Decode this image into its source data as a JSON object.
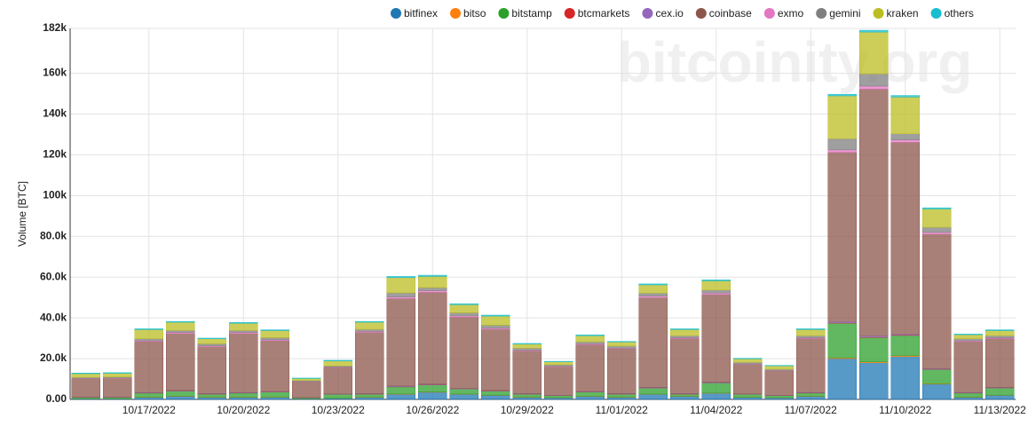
{
  "chart_data": {
    "type": "stacked_bar",
    "watermark": "bitcoinity.org",
    "y_label": "Volume [BTC]",
    "categories": [
      null,
      null,
      "10/17/2022",
      null,
      null,
      "10/20/2022",
      null,
      null,
      "10/23/2022",
      null,
      null,
      "10/26/2022",
      null,
      null,
      "10/29/2022",
      null,
      null,
      "11/01/2022",
      null,
      null,
      "11/04/2022",
      null,
      null,
      "11/07/2022",
      null,
      null,
      "11/10/2022",
      null,
      null,
      "11/13/2022"
    ],
    "ylim": [
      0,
      182000
    ],
    "yticks": [
      {
        "value": 0,
        "label": "0.00"
      },
      {
        "value": 20000,
        "label": "20.0k"
      },
      {
        "value": 40000,
        "label": "40.0k"
      },
      {
        "value": 60000,
        "label": "60.0k"
      },
      {
        "value": 80000,
        "label": "80.0k"
      },
      {
        "value": 100000,
        "label": "100k"
      },
      {
        "value": 120000,
        "label": "120k"
      },
      {
        "value": 140000,
        "label": "140k"
      },
      {
        "value": 160000,
        "label": "160k"
      },
      {
        "value": 182000,
        "label": "182k"
      }
    ],
    "grid": true,
    "legend_position": "top",
    "series": [
      {
        "name": "bitfinex",
        "color": "#1f77b4",
        "values": [
          300,
          300,
          1000,
          1500,
          1000,
          1000,
          1000,
          300,
          500,
          1000,
          2500,
          3500,
          2500,
          2000,
          1000,
          800,
          1500,
          1000,
          2500,
          1500,
          3000,
          1000,
          800,
          1500,
          20000,
          18000,
          21000,
          7500,
          1000,
          2000
        ]
      },
      {
        "name": "bitso",
        "color": "#ff7f0e",
        "values": [
          50,
          50,
          100,
          100,
          100,
          100,
          100,
          50,
          50,
          100,
          150,
          150,
          100,
          100,
          100,
          50,
          100,
          100,
          100,
          100,
          100,
          50,
          50,
          100,
          400,
          400,
          400,
          200,
          100,
          100
        ]
      },
      {
        "name": "bitstamp",
        "color": "#2ca02c",
        "values": [
          700,
          700,
          2000,
          2500,
          1500,
          2000,
          2500,
          500,
          2000,
          1500,
          3500,
          3500,
          2500,
          2000,
          1500,
          1000,
          2000,
          1500,
          3000,
          1000,
          5000,
          1500,
          1000,
          1500,
          17000,
          12000,
          10000,
          7000,
          2000,
          3500
        ]
      },
      {
        "name": "btcmarkets",
        "color": "#d62728",
        "values": [
          20,
          20,
          50,
          50,
          50,
          50,
          50,
          20,
          30,
          50,
          80,
          80,
          60,
          60,
          40,
          30,
          50,
          40,
          60,
          40,
          60,
          30,
          30,
          50,
          200,
          200,
          200,
          100,
          50,
          50
        ]
      },
      {
        "name": "cex.io",
        "color": "#9467bd",
        "values": [
          100,
          100,
          200,
          200,
          200,
          200,
          200,
          100,
          100,
          200,
          300,
          300,
          200,
          200,
          200,
          100,
          200,
          200,
          300,
          200,
          300,
          100,
          100,
          200,
          600,
          600,
          500,
          300,
          200,
          200
        ]
      },
      {
        "name": "coinbase",
        "color": "#8c564b",
        "values": [
          9000,
          9200,
          25000,
          28000,
          23000,
          29000,
          25000,
          7800,
          13000,
          30000,
          43000,
          45000,
          35000,
          30000,
          21000,
          14000,
          23000,
          22000,
          44000,
          27000,
          43000,
          14500,
          12000,
          26500,
          83000,
          121000,
          94000,
          66000,
          25000,
          24000
        ]
      },
      {
        "name": "exmo",
        "color": "#e377c2",
        "values": [
          150,
          150,
          400,
          500,
          400,
          500,
          400,
          100,
          200,
          500,
          700,
          800,
          600,
          500,
          300,
          200,
          400,
          300,
          700,
          400,
          700,
          200,
          200,
          400,
          1200,
          1500,
          1200,
          800,
          400,
          400
        ]
      },
      {
        "name": "gemini",
        "color": "#7f7f7f",
        "values": [
          500,
          500,
          1000,
          1000,
          1000,
          1000,
          1000,
          400,
          500,
          1000,
          2000,
          1500,
          1500,
          1500,
          1000,
          800,
          1000,
          1000,
          1500,
          1000,
          1500,
          800,
          600,
          1000,
          5500,
          6000,
          3000,
          2500,
          1000,
          1000
        ]
      },
      {
        "name": "kraken",
        "color": "#bcbd22",
        "values": [
          1800,
          1800,
          4500,
          4000,
          2500,
          3500,
          3500,
          1000,
          2500,
          3500,
          7500,
          5500,
          4000,
          4500,
          2000,
          1500,
          3000,
          2000,
          4000,
          3000,
          4500,
          1700,
          1700,
          3000,
          21000,
          20500,
          18000,
          9000,
          2000,
          2500
        ]
      },
      {
        "name": "others",
        "color": "#17becf",
        "values": [
          300,
          300,
          400,
          400,
          300,
          400,
          400,
          200,
          300,
          400,
          600,
          600,
          500,
          500,
          300,
          200,
          400,
          300,
          500,
          400,
          500,
          300,
          200,
          400,
          800,
          900,
          800,
          600,
          300,
          400
        ]
      }
    ]
  }
}
